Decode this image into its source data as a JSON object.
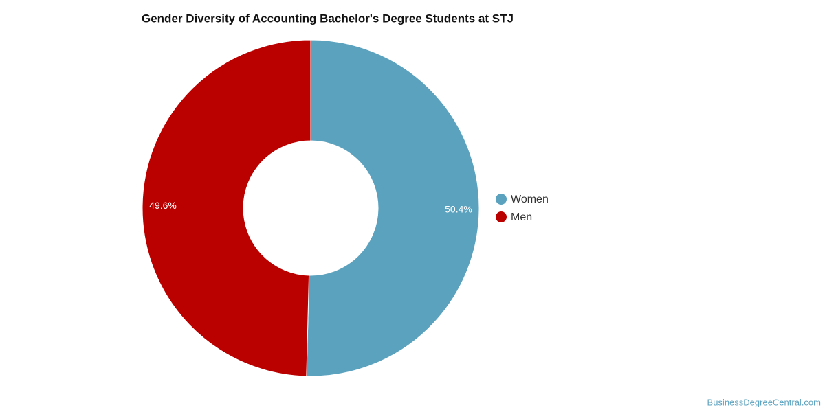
{
  "chart_data": {
    "type": "donut",
    "title": "Gender Diversity of Accounting Bachelor's Degree Students at STJ",
    "categories": [
      "Women",
      "Men"
    ],
    "values": [
      50.4,
      49.6
    ],
    "value_labels": [
      "50.4%",
      "49.6%"
    ],
    "colors": [
      "#5ba2bf",
      "#bb0000"
    ],
    "legend": "right",
    "source": "BusinessDegreeCentral.com"
  }
}
